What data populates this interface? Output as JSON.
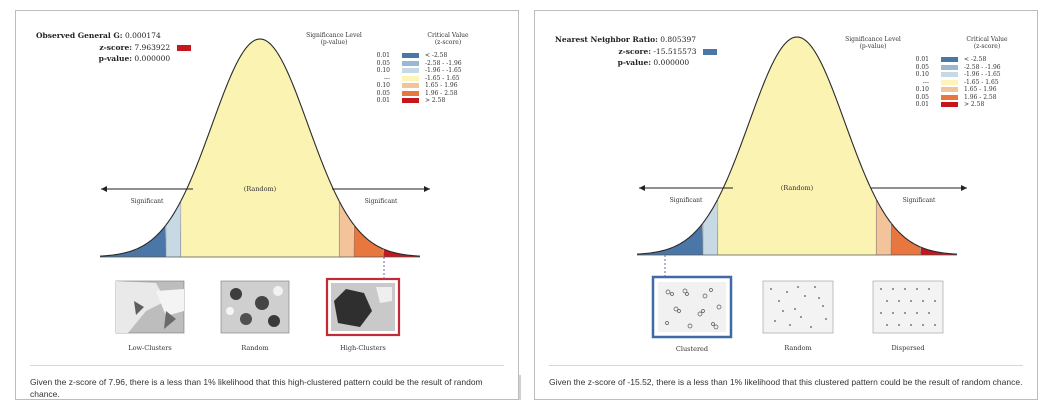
{
  "colors": {
    "dark_blue": "#4a76a8",
    "med_blue": "#98b8d4",
    "light_blue": "#c8d9e6",
    "neutral": "#fff4b8",
    "light_orange": "#f3c49a",
    "orange": "#e8763f",
    "red": "#c5161d",
    "curve_fill": "#fbf3b2"
  },
  "left": {
    "stat1_label": "Observed General G:",
    "stat1_value": "0.000174",
    "stat2_label": "z-score:",
    "stat2_value": "7.963922",
    "stat3_label": "p-value:",
    "stat3_value": "0.000000",
    "sig_header": "Significance Level\n(p-value)",
    "crit_header": "Critical Value\n(z-score)",
    "legend": [
      {
        "p": "0.01",
        "z": "< -2.58"
      },
      {
        "p": "0.05",
        "z": "-2.58 - -1.96"
      },
      {
        "p": "0.10",
        "z": "-1.96 - -1.65"
      },
      {
        "p": "---",
        "z": "-1.65 - 1.65"
      },
      {
        "p": "0.10",
        "z": "1.65 - 1.96"
      },
      {
        "p": "0.05",
        "z": "1.96 - 2.58"
      },
      {
        "p": "0.01",
        "z": "> 2.58"
      }
    ],
    "center_label": "(Random)",
    "left_sig_label": "Significant",
    "right_sig_label": "Significant",
    "thumbs": [
      "Low-Clusters",
      "Random",
      "High-Clusters"
    ],
    "caption": "Given the z-score of 7.96, there is a less than 1% likelihood that this high-clustered pattern could be the result of random chance."
  },
  "right": {
    "stat1_label": "Nearest Neighbor Ratio:",
    "stat1_value": "0.805397",
    "stat2_label": "z-score:",
    "stat2_value": "-15.515573",
    "stat3_label": "p-value:",
    "stat3_value": "0.000000",
    "sig_header": "Significance Level\n(p-value)",
    "crit_header": "Critical Value\n(z-score)",
    "legend": [
      {
        "p": "0.01",
        "z": "< -2.58"
      },
      {
        "p": "0.05",
        "z": "-2.58 - -1.96"
      },
      {
        "p": "0.10",
        "z": "-1.96 - -1.65"
      },
      {
        "p": "---",
        "z": "-1.65 - 1.65"
      },
      {
        "p": "0.10",
        "z": "1.65 - 1.96"
      },
      {
        "p": "0.05",
        "z": "1.96 - 2.58"
      },
      {
        "p": "0.01",
        "z": "> 2.58"
      }
    ],
    "center_label": "(Random)",
    "left_sig_label": "Significant",
    "right_sig_label": "Significant",
    "thumbs": [
      "Clustered",
      "Random",
      "Dispersed"
    ],
    "caption": "Given the z-score of -15.52, there is a less than 1% likelihood that this clustered pattern could be the result of random chance."
  }
}
